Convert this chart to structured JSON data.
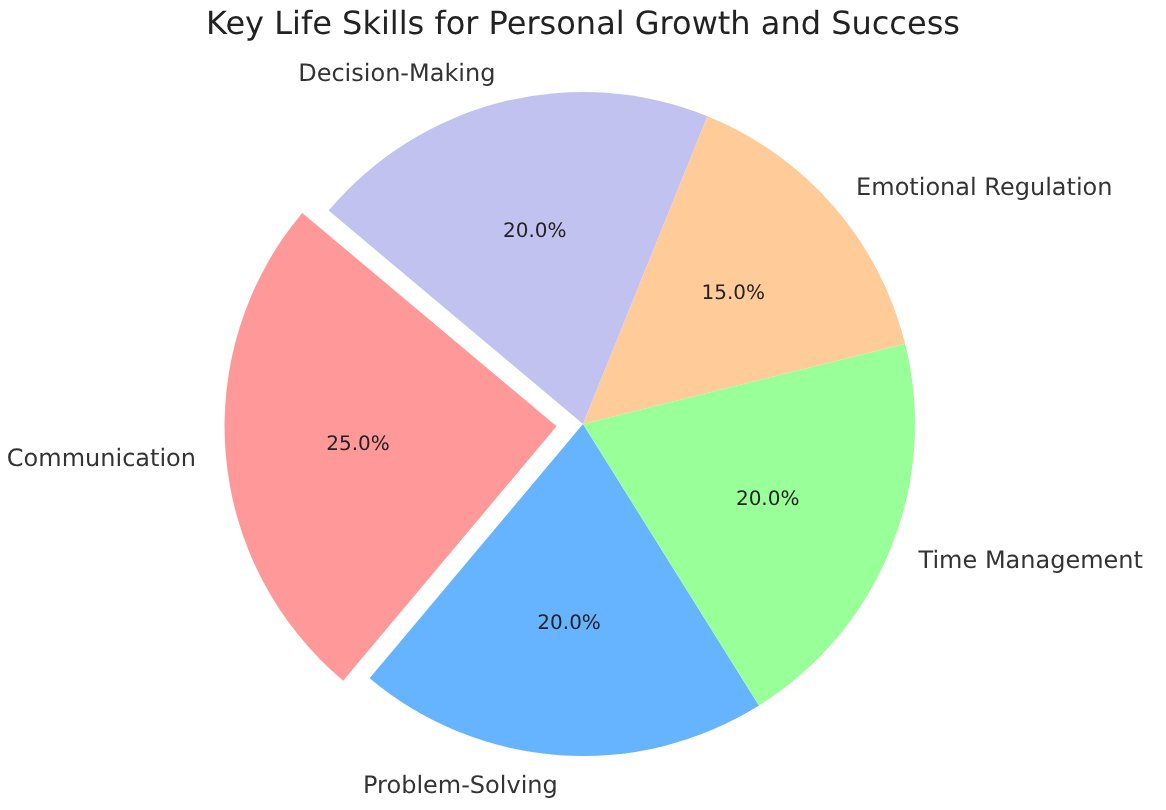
{
  "chart_data": {
    "type": "pie",
    "title": "Key Life Skills for Personal Growth and Success",
    "categories": [
      "Communication",
      "Problem-Solving",
      "Time Management",
      "Emotional Regulation",
      "Decision-Making"
    ],
    "values": [
      25,
      20,
      20,
      15,
      20
    ],
    "colors": [
      "#ff9999",
      "#66b3ff",
      "#99ff99",
      "#ffcc99",
      "#c2c2f0"
    ],
    "value_labels": [
      "25.0%",
      "20.0%",
      "20.0%",
      "15.0%",
      "20.0%"
    ]
  }
}
